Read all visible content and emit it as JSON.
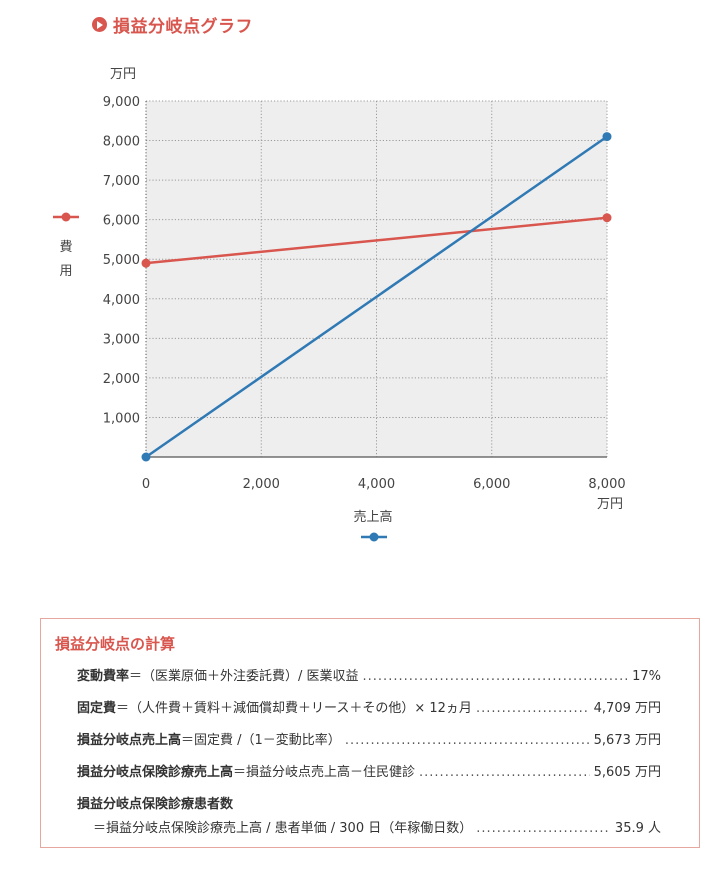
{
  "title": "損益分岐点グラフ",
  "chart_data": {
    "type": "line",
    "x_ticks": [
      "0",
      "2,000",
      "4,000",
      "6,000",
      "8,000"
    ],
    "y_ticks": [
      "1,000",
      "2,000",
      "3,000",
      "4,000",
      "5,000",
      "6,000",
      "7,000",
      "8,000",
      "9,000"
    ],
    "xlim": [
      0,
      8000
    ],
    "ylim": [
      0,
      9000
    ],
    "x_unit": "万円",
    "y_unit": "万円",
    "xlabel": "売上高",
    "ylabel": "費用",
    "grid": true,
    "series": [
      {
        "name": "費用",
        "color": "#d9564e",
        "x": [
          0,
          8000
        ],
        "y": [
          4900,
          6050
        ]
      },
      {
        "name": "売上高",
        "color": "#2f79b4",
        "x": [
          0,
          8000
        ],
        "y": [
          0,
          8100
        ]
      }
    ]
  },
  "calc": {
    "title": "損益分岐点の計算",
    "rows": [
      {
        "label": "変動費率",
        "text": "＝（医業原価＋外注委託費）/ 医業収益",
        "value": "17%"
      },
      {
        "label": "固定費",
        "text": "＝（人件費＋賃料＋減価償却費＋リース＋その他）× 12ヵ月",
        "value": "4,709 万円"
      },
      {
        "label": "損益分岐点売上高",
        "text": "＝固定費 /（1－変動比率）",
        "value": "5,673 万円"
      },
      {
        "label": "損益分岐点保険診療売上高",
        "text": "＝損益分岐点売上高－住民健診",
        "value": "5,605 万円"
      }
    ],
    "last": {
      "label": "損益分岐点保険診療患者数",
      "text": "＝損益分岐点保険診療売上高 / 患者単価 / 300 日（年稼働日数）",
      "value": "35.9 人"
    }
  }
}
